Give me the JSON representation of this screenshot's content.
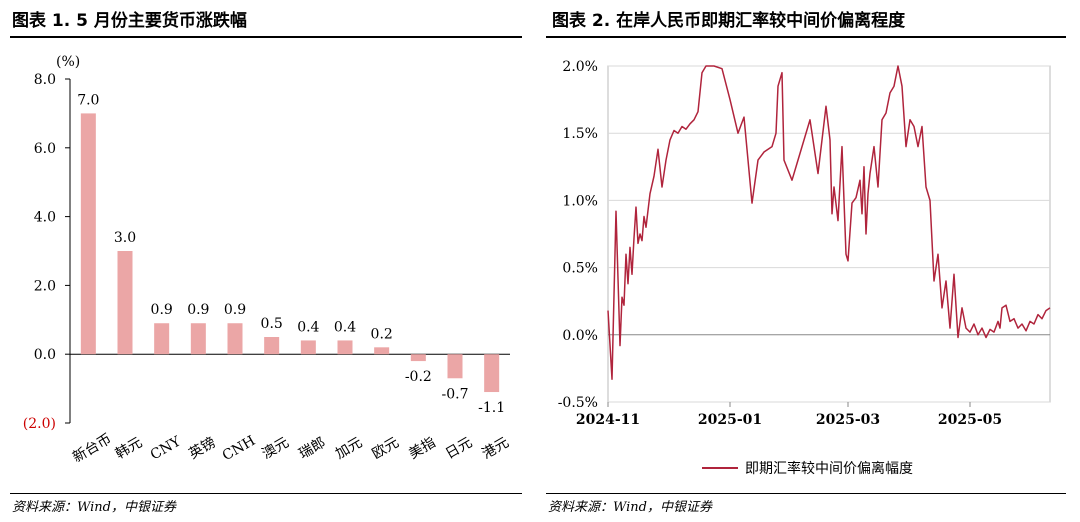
{
  "left": {
    "title": "图表 1. 5 月份主要货币涨跌幅",
    "source": "资料来源：Wind，中银证券",
    "chart_data": {
      "type": "bar",
      "unit_label": "(%)",
      "categories": [
        "新台币",
        "韩元",
        "CNY",
        "英镑",
        "CNH",
        "澳元",
        "瑞郎",
        "加元",
        "欧元",
        "美指",
        "日元",
        "港元"
      ],
      "values": [
        7.0,
        3.0,
        0.9,
        0.9,
        0.9,
        0.5,
        0.4,
        0.4,
        0.2,
        -0.2,
        -0.7,
        -1.1
      ],
      "value_labels": [
        "7.0",
        "3.0",
        "0.9",
        "0.9",
        "0.9",
        "0.5",
        "0.4",
        "0.4",
        "0.2",
        "-0.2",
        "-0.7",
        "-1.1"
      ],
      "y_ticks": [
        8.0,
        6.0,
        4.0,
        2.0,
        0.0,
        -2.0
      ],
      "y_tick_labels": [
        "8.0",
        "6.0",
        "4.0",
        "2.0",
        "0.0",
        "(2.0)"
      ],
      "ylim": [
        -2.0,
        8.0
      ],
      "bar_color": "#EBA6A6",
      "negative_tick_color": "#CC0000"
    }
  },
  "right": {
    "title": "图表 2. 在岸人民币即期汇率较中间价偏离程度",
    "source": "资料来源：Wind，中银证券",
    "chart_data": {
      "type": "line",
      "y_ticks": [
        2.0,
        1.5,
        1.0,
        0.5,
        0.0,
        -0.5
      ],
      "y_tick_labels": [
        "2.0%",
        "1.5%",
        "1.0%",
        "0.5%",
        "0.0%",
        "-0.5%"
      ],
      "ylim": [
        -0.5,
        2.0
      ],
      "x_ticks": [
        "2024-11-01",
        "2025-01-01",
        "2025-03-01",
        "2025-05-01"
      ],
      "x_tick_labels": [
        "2024-11",
        "2025-01",
        "2025-03",
        "2025-05"
      ],
      "xlim": [
        "2024-11-01",
        "2025-06-10"
      ],
      "grid": "horizontal",
      "legend_position": "bottom",
      "color": "#B0243C",
      "series": [
        {
          "name": "即期汇率较中间价偏离幅度",
          "x": [
            "2024-11-01",
            "2024-11-03",
            "2024-11-05",
            "2024-11-07",
            "2024-11-08",
            "2024-11-09",
            "2024-11-10",
            "2024-11-11",
            "2024-11-12",
            "2024-11-13",
            "2024-11-14",
            "2024-11-15",
            "2024-11-16",
            "2024-11-17",
            "2024-11-18",
            "2024-11-19",
            "2024-11-20",
            "2024-11-22",
            "2024-11-24",
            "2024-11-26",
            "2024-11-28",
            "2024-11-30",
            "2024-12-02",
            "2024-12-04",
            "2024-12-06",
            "2024-12-08",
            "2024-12-10",
            "2024-12-12",
            "2024-12-14",
            "2024-12-16",
            "2024-12-18",
            "2024-12-20",
            "2024-12-24",
            "2024-12-28",
            "2025-01-01",
            "2025-01-05",
            "2025-01-08",
            "2025-01-12",
            "2025-01-15",
            "2025-01-18",
            "2025-01-22",
            "2025-01-24",
            "2025-01-25",
            "2025-01-27",
            "2025-01-28",
            "2025-02-01",
            "2025-02-05",
            "2025-02-10",
            "2025-02-14",
            "2025-02-18",
            "2025-02-20",
            "2025-02-21",
            "2025-02-22",
            "2025-02-24",
            "2025-02-26",
            "2025-02-28",
            "2025-03-01",
            "2025-03-03",
            "2025-03-05",
            "2025-03-07",
            "2025-03-08",
            "2025-03-09",
            "2025-03-10",
            "2025-03-11",
            "2025-03-12",
            "2025-03-14",
            "2025-03-16",
            "2025-03-18",
            "2025-03-20",
            "2025-03-22",
            "2025-03-24",
            "2025-03-26",
            "2025-03-28",
            "2025-03-30",
            "2025-04-01",
            "2025-04-03",
            "2025-04-05",
            "2025-04-07",
            "2025-04-09",
            "2025-04-11",
            "2025-04-13",
            "2025-04-15",
            "2025-04-17",
            "2025-04-19",
            "2025-04-21",
            "2025-04-23",
            "2025-04-25",
            "2025-04-27",
            "2025-04-29",
            "2025-05-01",
            "2025-05-03",
            "2025-05-05",
            "2025-05-07",
            "2025-05-09",
            "2025-05-11",
            "2025-05-13",
            "2025-05-15",
            "2025-05-16",
            "2025-05-17",
            "2025-05-19",
            "2025-05-21",
            "2025-05-23",
            "2025-05-25",
            "2025-05-27",
            "2025-05-29",
            "2025-05-31",
            "2025-06-02",
            "2025-06-04",
            "2025-06-06",
            "2025-06-08",
            "2025-06-10"
          ],
          "y": [
            0.18,
            -0.33,
            0.92,
            -0.08,
            0.28,
            0.22,
            0.6,
            0.38,
            0.65,
            0.45,
            0.72,
            0.95,
            0.68,
            0.75,
            0.7,
            0.88,
            0.8,
            1.05,
            1.18,
            1.38,
            1.1,
            1.3,
            1.45,
            1.52,
            1.5,
            1.55,
            1.53,
            1.57,
            1.6,
            1.66,
            1.95,
            2.0,
            2.0,
            1.98,
            1.75,
            1.5,
            1.62,
            0.98,
            1.3,
            1.36,
            1.4,
            1.5,
            1.85,
            1.95,
            1.3,
            1.15,
            1.35,
            1.6,
            1.2,
            1.7,
            1.45,
            0.9,
            1.1,
            0.85,
            1.4,
            0.6,
            0.55,
            0.98,
            1.02,
            1.15,
            0.9,
            1.25,
            0.75,
            1.05,
            1.2,
            1.4,
            1.1,
            1.6,
            1.65,
            1.8,
            1.85,
            2.0,
            1.85,
            1.4,
            1.6,
            1.55,
            1.4,
            1.55,
            1.1,
            1.0,
            0.4,
            0.6,
            0.2,
            0.4,
            0.05,
            0.45,
            -0.02,
            0.2,
            0.05,
            0.02,
            0.08,
            0.0,
            0.05,
            -0.02,
            0.04,
            0.02,
            0.1,
            0.05,
            0.2,
            0.22,
            0.1,
            0.12,
            0.05,
            0.08,
            0.03,
            0.1,
            0.08,
            0.15,
            0.12,
            0.18,
            0.2
          ]
        }
      ]
    }
  }
}
